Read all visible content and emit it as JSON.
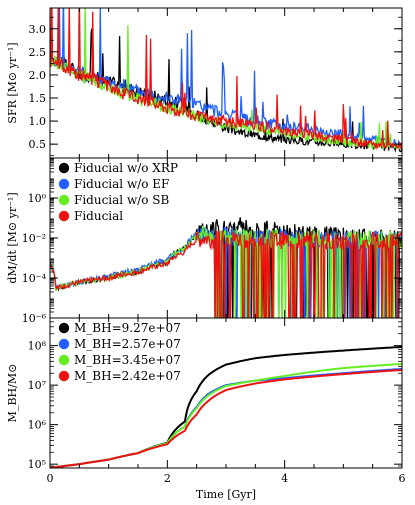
{
  "chart_data": [
    {
      "type": "line",
      "panel": "top",
      "title": "",
      "xlabel": "",
      "ylabel": "SFR [M⊙ yr⁻¹]",
      "xlim": [
        0,
        6
      ],
      "ylim": [
        0.2,
        3.45
      ],
      "yscale": "linear",
      "yticks": [
        0.5,
        1.0,
        1.5,
        2.0,
        2.5,
        3.0
      ],
      "ytick_labels": [
        "0.5",
        "1.0",
        "1.5",
        "2.0",
        "2.5",
        "3.0"
      ],
      "x": [
        0,
        0.15,
        0.3,
        0.5,
        0.75,
        1.0,
        1.25,
        1.5,
        1.75,
        2.0,
        2.25,
        2.5,
        2.75,
        3.0,
        3.25,
        3.5,
        3.75,
        4.0,
        4.5,
        5.0,
        5.5,
        6.0
      ],
      "series": [
        {
          "name": "Fiducial w/o XRP",
          "color": "#000000",
          "values": [
            2.35,
            2.3,
            2.2,
            2.05,
            1.95,
            1.85,
            1.75,
            1.65,
            1.55,
            1.45,
            1.35,
            1.15,
            1.0,
            0.85,
            0.75,
            0.7,
            0.65,
            0.6,
            0.55,
            0.5,
            0.45,
            0.4
          ]
        },
        {
          "name": "Fiducial w/o EF",
          "color": "#1f5fff",
          "values": [
            2.3,
            2.28,
            2.2,
            2.05,
            1.95,
            1.85,
            1.75,
            1.65,
            1.58,
            1.5,
            1.45,
            1.35,
            1.25,
            1.15,
            1.05,
            1.0,
            0.95,
            0.9,
            0.8,
            0.7,
            0.6,
            0.5
          ]
        },
        {
          "name": "Fiducial w/o SB",
          "color": "#66ee22",
          "values": [
            2.3,
            2.25,
            2.15,
            2.0,
            1.9,
            1.75,
            1.6,
            1.5,
            1.4,
            1.3,
            1.2,
            1.1,
            1.0,
            0.95,
            0.9,
            0.85,
            0.8,
            0.75,
            0.65,
            0.55,
            0.48,
            0.45
          ]
        },
        {
          "name": "Fiducial",
          "color": "#ee1111",
          "values": [
            2.3,
            2.25,
            2.15,
            2.0,
            1.9,
            1.75,
            1.6,
            1.5,
            1.4,
            1.3,
            1.2,
            1.1,
            1.05,
            1.0,
            0.95,
            0.9,
            0.85,
            0.8,
            0.7,
            0.6,
            0.5,
            0.45
          ]
        }
      ]
    },
    {
      "type": "line",
      "panel": "middle",
      "title": "",
      "xlabel": "",
      "ylabel": "dM/dt [M⊙ yr⁻¹]",
      "xlim": [
        0,
        6
      ],
      "ylim": [
        1e-06,
        100
      ],
      "yscale": "log",
      "yticks": [
        1e-06,
        0.0001,
        0.01,
        1
      ],
      "ytick_labels": [
        "10⁻⁶",
        "10⁻⁴",
        "10⁻²",
        "10⁰"
      ],
      "legend": {
        "placement": "top-left",
        "entries": [
          "Fiducial w/o XRP",
          "Fiducial w/o EF",
          "Fiducial w/o SB",
          "Fiducial"
        ]
      },
      "x": [
        0,
        0.1,
        0.5,
        1.0,
        1.5,
        2.0,
        2.3,
        2.6,
        2.8,
        3.0,
        3.5,
        4.0,
        4.5,
        5.0,
        5.5,
        6.0
      ],
      "series": [
        {
          "name": "Fiducial w/o XRP",
          "color": "#000000",
          "values": [
            0.0005,
            3e-05,
            6e-05,
            0.0001,
            0.0002,
            0.0006,
            0.003,
            0.02,
            0.03,
            0.05,
            0.03,
            0.02,
            0.015,
            0.012,
            0.01,
            0.01
          ]
        },
        {
          "name": "Fiducial w/o EF",
          "color": "#1f5fff",
          "values": [
            0.0005,
            3e-05,
            6e-05,
            0.00012,
            0.00025,
            0.0008,
            0.003,
            0.02,
            0.01,
            0.012,
            0.01,
            0.01,
            0.008,
            0.008,
            0.008,
            0.007
          ]
        },
        {
          "name": "Fiducial w/o SB",
          "color": "#66ee22",
          "values": [
            0.0005,
            3e-05,
            6e-05,
            0.0001,
            0.0002,
            0.0006,
            0.003,
            0.015,
            0.01,
            0.012,
            0.01,
            0.01,
            0.01,
            0.009,
            0.009,
            0.008
          ]
        },
        {
          "name": "Fiducial",
          "color": "#ee1111",
          "values": [
            0.0005,
            3e-05,
            6e-05,
            0.0001,
            0.0002,
            0.0005,
            0.002,
            0.01,
            0.008,
            0.01,
            0.008,
            0.008,
            0.008,
            0.007,
            0.007,
            0.007
          ]
        }
      ]
    },
    {
      "type": "line",
      "panel": "bottom",
      "title": "",
      "xlabel": "Time  [Gyr]",
      "ylabel": "M_BH/M⊙",
      "xlim": [
        0,
        6
      ],
      "ylim": [
        80000,
        500000000
      ],
      "yscale": "log",
      "xticks": [
        0,
        2,
        4,
        6
      ],
      "xtick_labels": [
        "0",
        "2",
        "4",
        "6"
      ],
      "yticks": [
        100000,
        1000000,
        10000000,
        100000000
      ],
      "ytick_labels": [
        "10⁵",
        "10⁶",
        "10⁷",
        "10⁸"
      ],
      "legend": {
        "placement": "top-left",
        "entries": [
          "M_BH=9.27e+07",
          "M_BH=2.57e+07",
          "M_BH=3.45e+07",
          "M_BH=2.42e+07"
        ]
      },
      "x": [
        0,
        0.5,
        1.0,
        1.5,
        2.0,
        2.3,
        2.5,
        2.7,
        3.0,
        3.5,
        4.0,
        5.0,
        6.0
      ],
      "series": [
        {
          "name": "M_BH=9.27e+07",
          "color": "#000000",
          "values": [
            80000,
            100000,
            130000,
            190000,
            350000,
            1200000,
            7000000,
            18000000,
            33000000,
            48000000,
            58000000,
            75000000,
            92700000
          ]
        },
        {
          "name": "M_BH=2.57e+07",
          "color": "#1f5fff",
          "values": [
            80000,
            100000,
            130000,
            190000,
            340000,
            900000,
            2800000,
            6000000,
            10000000,
            13000000,
            15000000,
            20000000,
            25700000
          ]
        },
        {
          "name": "M_BH=3.45e+07",
          "color": "#66ee22",
          "values": [
            80000,
            100000,
            130000,
            190000,
            340000,
            900000,
            2600000,
            5500000,
            9500000,
            13000000,
            17000000,
            27000000,
            34500000
          ]
        },
        {
          "name": "M_BH=2.42e+07",
          "color": "#ee1111",
          "values": [
            80000,
            100000,
            130000,
            190000,
            320000,
            700000,
            1800000,
            4000000,
            7500000,
            11000000,
            14000000,
            19000000,
            24200000
          ]
        }
      ]
    }
  ]
}
